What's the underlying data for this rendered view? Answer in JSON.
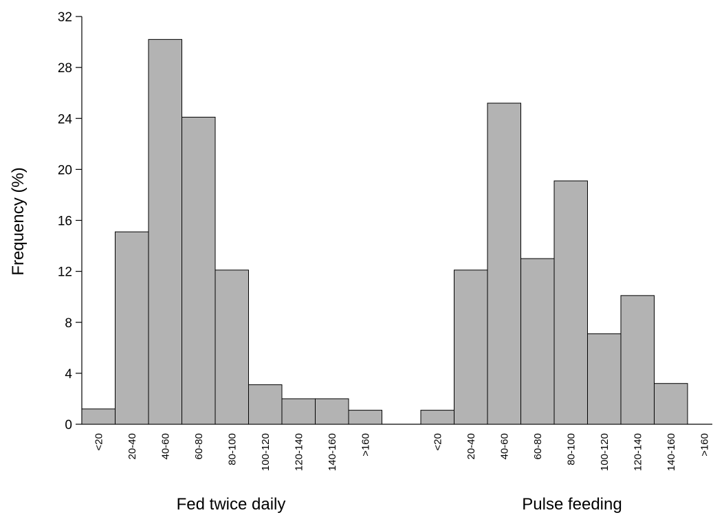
{
  "chart_data": {
    "type": "bar",
    "ylabel": "Frequency (%)",
    "ylim": [
      0,
      32
    ],
    "yticks": [
      "0",
      "4",
      "8",
      "12",
      "16",
      "20",
      "24",
      "28",
      "32"
    ],
    "grid": false,
    "bar_color": "#b3b3b3",
    "groups": [
      {
        "name": "Fed twice daily",
        "categories": [
          "<20",
          "20-40",
          "40-60",
          "60-80",
          "80-100",
          "100-120",
          "120-140",
          "140-160",
          ">160"
        ],
        "values": [
          1.2,
          15.1,
          30.2,
          24.1,
          12.1,
          3.1,
          2.0,
          2.0,
          1.1
        ]
      },
      {
        "name": "Pulse feeding",
        "categories": [
          "<20",
          "20-40",
          "40-60",
          "60-80",
          "80-100",
          "100-120",
          "120-140",
          "140-160",
          ">160"
        ],
        "values": [
          1.1,
          12.1,
          25.2,
          13.0,
          19.1,
          7.1,
          10.1,
          3.2,
          0
        ]
      }
    ]
  }
}
